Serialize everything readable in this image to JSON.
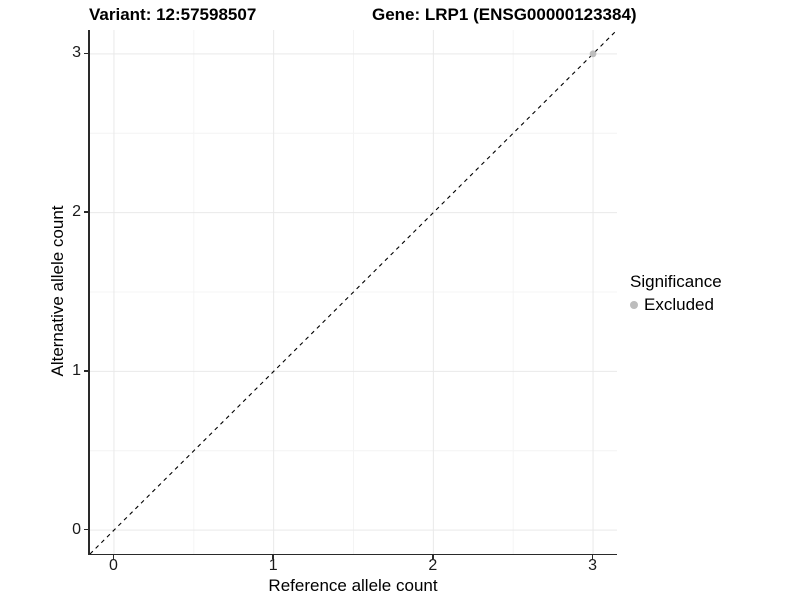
{
  "header": {
    "variant_title": "Variant: 12:57598507",
    "gene_title": "Gene: LRP1 (ENSG00000123384)"
  },
  "axes": {
    "x_label": "Reference allele count",
    "y_label": "Alternative allele count",
    "x_tick_labels": [
      "0",
      "1",
      "2",
      "3"
    ],
    "y_tick_labels": [
      "0",
      "1",
      "2",
      "3"
    ]
  },
  "legend": {
    "title": "Significance",
    "items": [
      {
        "label": "Excluded",
        "color": "#bdbdbd"
      }
    ]
  },
  "colors": {
    "background": "#ffffff",
    "axis_line": "#2a2a2a",
    "grid_major": "#e9e9e9",
    "grid_minor": "#f4f4f4",
    "reference_line": "#000000",
    "excluded_point": "#bdbdbd",
    "text": "#000000"
  },
  "chart_data": {
    "type": "scatter",
    "title": "Variant: 12:57598507   Gene: LRP1 (ENSG00000123384)",
    "xlabel": "Reference allele count",
    "ylabel": "Alternative allele count",
    "xlim": [
      -0.15,
      3.15
    ],
    "ylim": [
      -0.15,
      3.15
    ],
    "x_major_ticks": [
      0,
      1,
      2,
      3
    ],
    "y_major_ticks": [
      0,
      1,
      2,
      3
    ],
    "x_minor_ticks": [
      0.5,
      1.5,
      2.5
    ],
    "y_minor_ticks": [
      0.5,
      1.5,
      2.5
    ],
    "grid": true,
    "legend_position": "right",
    "legend_title": "Significance",
    "series": [
      {
        "name": "Excluded",
        "color": "#bdbdbd",
        "points": [
          {
            "x": 3,
            "y": 3
          }
        ]
      }
    ],
    "reference_line": {
      "type": "identity",
      "from": [
        -0.15,
        -0.15
      ],
      "to": [
        3.15,
        3.15
      ],
      "linetype": "dashed",
      "color": "#000000",
      "width": 1.1
    }
  }
}
